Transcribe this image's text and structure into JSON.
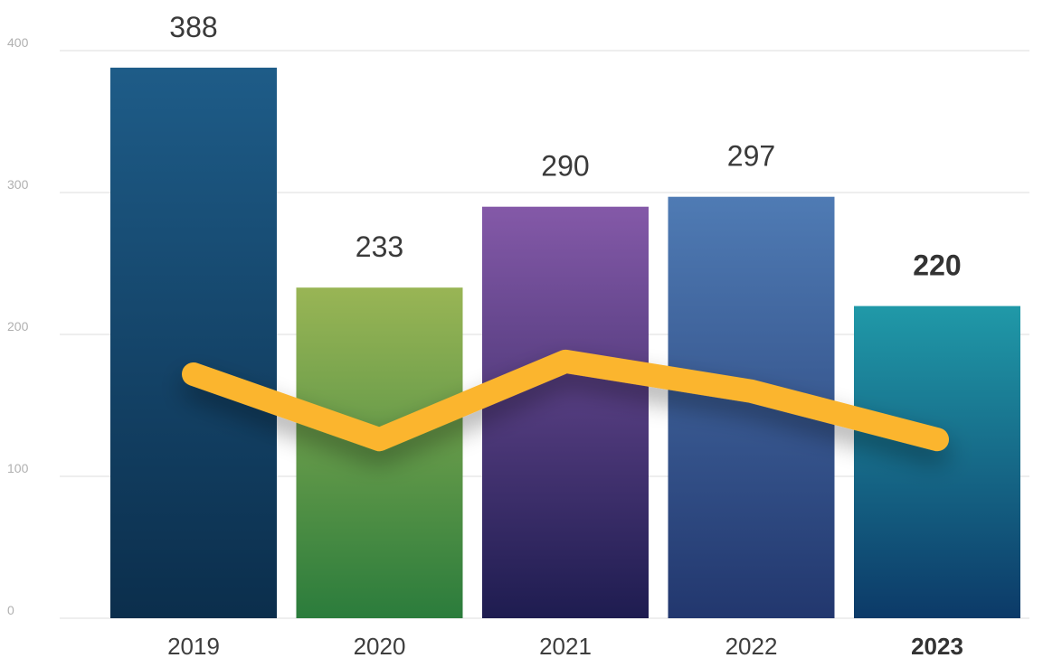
{
  "chart_data": {
    "type": "bar",
    "title": "",
    "xlabel": "",
    "ylabel": "",
    "categories": [
      "2019",
      "2020",
      "2021",
      "2022",
      "2023"
    ],
    "values": [
      388,
      233,
      290,
      297,
      220
    ],
    "value_labels": [
      "388",
      "233",
      "290",
      "297",
      "220"
    ],
    "ylim": [
      0,
      400
    ],
    "yticks": [
      0,
      100,
      200,
      300,
      400
    ],
    "ytick_labels": [
      "0",
      "100",
      "200",
      "300",
      "400"
    ],
    "grid": true,
    "highlight_category": "2023",
    "bar_colors": [
      {
        "top": "#1e5c88",
        "bottom": "#0b2e4c"
      },
      {
        "top": "#99b555",
        "bottom": "#2b7c3c"
      },
      {
        "top": "#8459a8",
        "bottom": "#1e1c50"
      },
      {
        "top": "#4f7bb4",
        "bottom": "#22376e"
      },
      {
        "top": "#2099a8",
        "bottom": "#0c3a68"
      }
    ],
    "line": {
      "color": "#fbb52f",
      "values": [
        172,
        126,
        181,
        160,
        126
      ]
    }
  }
}
